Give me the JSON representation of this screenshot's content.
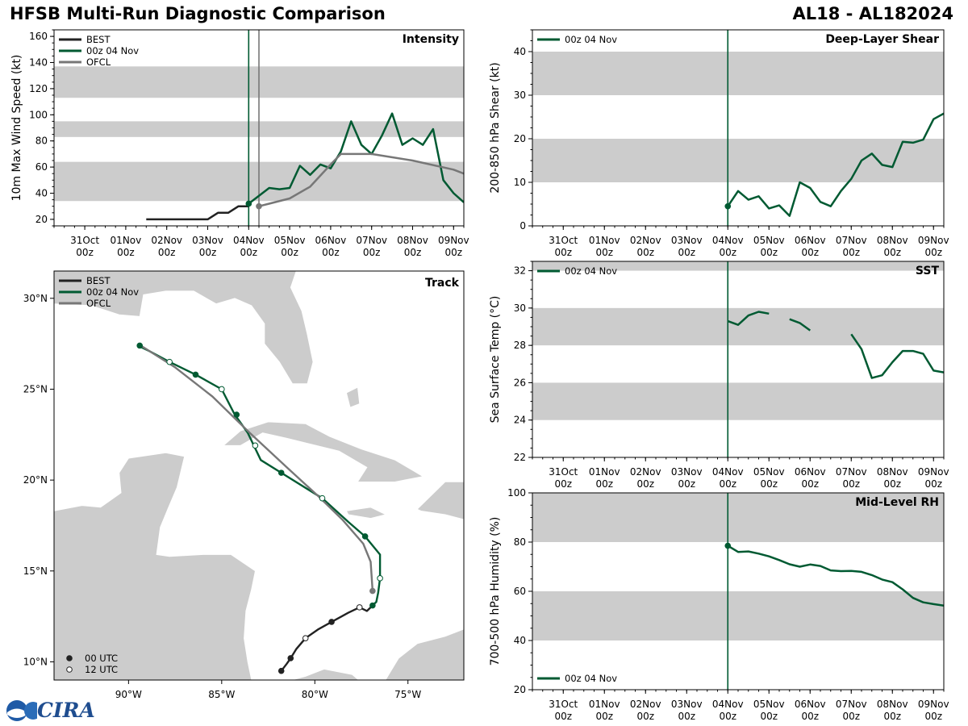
{
  "header": {
    "title": "HFSB Multi-Run Diagnostic Comparison",
    "storm": "AL18 - AL182024"
  },
  "logo": {
    "text": "CIRA"
  },
  "colors": {
    "best": "#222222",
    "run": "#005a32",
    "ofcl": "#777777",
    "band": "#cccccc",
    "land": "#cccccc"
  },
  "time_axis": {
    "ticks": [
      [
        "31Oct",
        "00z"
      ],
      [
        "01Nov",
        "00z"
      ],
      [
        "02Nov",
        "00z"
      ],
      [
        "03Nov",
        "00z"
      ],
      [
        "04Nov",
        "00z"
      ],
      [
        "05Nov",
        "00z"
      ],
      [
        "06Nov",
        "00z"
      ],
      [
        "07Nov",
        "00z"
      ],
      [
        "08Nov",
        "00z"
      ],
      [
        "09Nov",
        "00z"
      ]
    ]
  },
  "chart_data": [
    {
      "id": "intensity",
      "type": "line",
      "title": "Intensity",
      "ylabel": "10m Max Wind Speed (kt)",
      "ylim": [
        15,
        165
      ],
      "xlim": [
        -0.75,
        9.25
      ],
      "yticks": [
        20,
        40,
        60,
        80,
        100,
        120,
        140,
        160
      ],
      "bands": [
        [
          34,
          64
        ],
        [
          83,
          95
        ],
        [
          113,
          137
        ]
      ],
      "vlines": [
        {
          "x": 4.0,
          "series": "run"
        },
        {
          "x": 4.25,
          "series": "ofcl"
        }
      ],
      "legend": "top-left",
      "series": [
        {
          "name": "BEST",
          "key": "best",
          "x": [
            1.5,
            1.75,
            2,
            2.25,
            2.5,
            2.75,
            3,
            3.25,
            3.5,
            3.75,
            4
          ],
          "y": [
            20,
            20,
            20,
            20,
            20,
            20,
            20,
            25,
            25,
            30,
            30
          ]
        },
        {
          "name": "00z 04 Nov",
          "key": "run",
          "start_marker": true,
          "x": [
            4,
            4.25,
            4.5,
            4.75,
            5,
            5.25,
            5.5,
            5.75,
            6,
            6.25,
            6.5,
            6.75,
            7,
            7.25,
            7.5,
            7.75,
            8,
            8.25,
            8.5,
            8.75,
            9,
            9.25
          ],
          "y": [
            32,
            38,
            44,
            43,
            44,
            61,
            54,
            62,
            59,
            72,
            95,
            77,
            70,
            84,
            101,
            77,
            82,
            77,
            89,
            50,
            40,
            33
          ]
        },
        {
          "name": "OFCL",
          "key": "ofcl",
          "start_marker": true,
          "x": [
            4.25,
            4.5,
            5,
            5.5,
            6,
            6.25,
            7,
            8,
            9,
            9.25
          ],
          "y": [
            30,
            32,
            36,
            45,
            62,
            70,
            70,
            65,
            58,
            55
          ]
        }
      ]
    },
    {
      "id": "shear",
      "type": "line",
      "title": "Deep-Layer Shear",
      "ylabel": "200-850 hPa Shear (kt)",
      "ylim": [
        0,
        45
      ],
      "xlim": [
        -0.75,
        9.25
      ],
      "yticks": [
        0,
        10,
        20,
        30,
        40
      ],
      "bands": [
        [
          10,
          20
        ],
        [
          30,
          40
        ]
      ],
      "vlines": [
        {
          "x": 4.0,
          "series": "run"
        }
      ],
      "legend": "top-left",
      "series": [
        {
          "name": "00z 04 Nov",
          "key": "run",
          "start_marker": true,
          "x": [
            4,
            4.25,
            4.5,
            4.75,
            5,
            5.25,
            5.5,
            5.75,
            6,
            6.25,
            6.5,
            6.75,
            7,
            7.25,
            7.5,
            7.75,
            8,
            8.25,
            8.5,
            8.75,
            9,
            9.25
          ],
          "y": [
            4.5,
            8,
            6,
            6.8,
            4,
            4.7,
            2.3,
            10,
            8.7,
            5.5,
            4.5,
            8,
            10.8,
            15,
            16.6,
            14,
            13.5,
            19.3,
            19.1,
            19.8,
            24.5,
            25.8
          ]
        }
      ]
    },
    {
      "id": "sst",
      "type": "line",
      "title": "SST",
      "ylabel": "Sea Surface Temp (°C)",
      "ylim": [
        22,
        32.5
      ],
      "xlim": [
        -0.75,
        9.25
      ],
      "yticks": [
        22,
        24,
        26,
        28,
        30,
        32
      ],
      "bands": [
        [
          24,
          26
        ],
        [
          28,
          30
        ],
        [
          32,
          33
        ]
      ],
      "vlines": [
        {
          "x": 4.0,
          "series": "run"
        }
      ],
      "legend": "top-left",
      "series": [
        {
          "name": "00z 04 Nov",
          "key": "run",
          "segments": [
            {
              "x": [
                4,
                4.25,
                4.5,
                4.75,
                5
              ],
              "y": [
                29.3,
                29.1,
                29.6,
                29.8,
                29.7
              ]
            },
            {
              "x": [
                5.5,
                5.75,
                6
              ],
              "y": [
                29.4,
                29.2,
                28.8
              ]
            },
            {
              "x": [
                7,
                7.25,
                7.5,
                7.75,
                8,
                8.25,
                8.5,
                8.75,
                9,
                9.25
              ],
              "y": [
                28.6,
                27.8,
                26.25,
                26.4,
                27.1,
                27.7,
                27.7,
                27.55,
                26.65,
                26.55
              ]
            }
          ]
        }
      ]
    },
    {
      "id": "rh",
      "type": "line",
      "title": "Mid-Level RH",
      "ylabel": "700-500 hPa Humidity (%)",
      "ylim": [
        20,
        100
      ],
      "xlim": [
        -0.75,
        9.25
      ],
      "yticks": [
        20,
        40,
        60,
        80,
        100
      ],
      "bands": [
        [
          40,
          60
        ],
        [
          80,
          100
        ]
      ],
      "vlines": [
        {
          "x": 4.0,
          "series": "run"
        }
      ],
      "legend": "bottom-left",
      "series": [
        {
          "name": "00z 04 Nov",
          "key": "run",
          "start_marker": true,
          "x": [
            4,
            4.25,
            4.5,
            4.75,
            5,
            5.25,
            5.5,
            5.75,
            6,
            6.25,
            6.5,
            6.75,
            7,
            7.25,
            7.5,
            7.75,
            8,
            8.25,
            8.5,
            8.75,
            9,
            9.25
          ],
          "y": [
            78.5,
            76,
            76.2,
            75.3,
            74.2,
            72.7,
            71,
            70,
            70.9,
            70.3,
            68.5,
            68.2,
            68.3,
            67.9,
            66.6,
            64.8,
            63.7,
            60.8,
            57.3,
            55.5,
            54.8,
            54.2
          ]
        }
      ]
    },
    {
      "id": "track",
      "type": "scatter",
      "title": "Track",
      "xlim": [
        -94,
        -72
      ],
      "ylim": [
        9,
        31.5
      ],
      "xticks": [
        -90,
        -85,
        -80,
        -75
      ],
      "xtick_labels": [
        "90°W",
        "85°W",
        "80°W",
        "75°W"
      ],
      "yticks": [
        10,
        15,
        20,
        25,
        30
      ],
      "ytick_labels": [
        "10°N",
        "15°N",
        "20°N",
        "25°N",
        "30°N"
      ],
      "legend": "top-left",
      "marker_legend": [
        {
          "label": "00 UTC",
          "fill": true
        },
        {
          "label": "12 UTC",
          "fill": false
        }
      ],
      "series": [
        {
          "name": "BEST",
          "key": "best",
          "lon": [
            -81.8,
            -81.5,
            -81.3,
            -81.0,
            -80.5,
            -79.8,
            -79.1,
            -78.2,
            -77.6,
            -77.2,
            -76.9
          ],
          "lat": [
            9.5,
            9.9,
            10.2,
            10.7,
            11.3,
            11.8,
            12.2,
            12.7,
            13.0,
            12.8,
            13.1
          ],
          "markers": [
            [
              -81.8,
              9.5,
              1
            ],
            [
              -81.3,
              10.2,
              1
            ],
            [
              -80.5,
              11.3,
              0
            ],
            [
              -79.1,
              12.2,
              1
            ],
            [
              -77.6,
              13.0,
              0
            ]
          ]
        },
        {
          "name": "00z 04 Nov",
          "key": "run",
          "lon": [
            -76.9,
            -76.7,
            -76.6,
            -76.5,
            -76.5,
            -76.5,
            -77.3,
            -78.2,
            -79.6,
            -81.8,
            -82.9,
            -83.6,
            -84.3,
            -85.0,
            -86.4,
            -87.8,
            -88.9,
            -89.5
          ],
          "lat": [
            13.1,
            13.3,
            13.8,
            14.6,
            15.9,
            15.9,
            16.9,
            17.7,
            19.0,
            20.4,
            21.1,
            22.6,
            23.6,
            25.0,
            25.8,
            26.5,
            27.1,
            27.4
          ],
          "markers": [
            [
              -76.9,
              13.1,
              1
            ],
            [
              -76.5,
              14.6,
              0
            ],
            [
              -77.3,
              16.9,
              1
            ],
            [
              -79.6,
              19.0,
              0
            ],
            [
              -81.8,
              20.4,
              1
            ],
            [
              -83.2,
              21.9,
              0
            ],
            [
              -84.2,
              23.6,
              1
            ],
            [
              -85.0,
              25.0,
              0
            ],
            [
              -86.4,
              25.8,
              1
            ],
            [
              -87.8,
              26.5,
              0
            ],
            [
              -89.4,
              27.4,
              1
            ]
          ]
        },
        {
          "name": "OFCL",
          "key": "ofcl",
          "lon": [
            -76.9,
            -77.0,
            -77.4,
            -78.5,
            -79.8,
            -81.5,
            -83.5,
            -85.5,
            -87.5,
            -89.5
          ],
          "lat": [
            13.9,
            15.5,
            16.5,
            17.8,
            19.1,
            20.7,
            22.6,
            24.6,
            26.2,
            27.5
          ],
          "markers": [
            [
              -76.9,
              13.9,
              1
            ]
          ]
        }
      ]
    }
  ]
}
